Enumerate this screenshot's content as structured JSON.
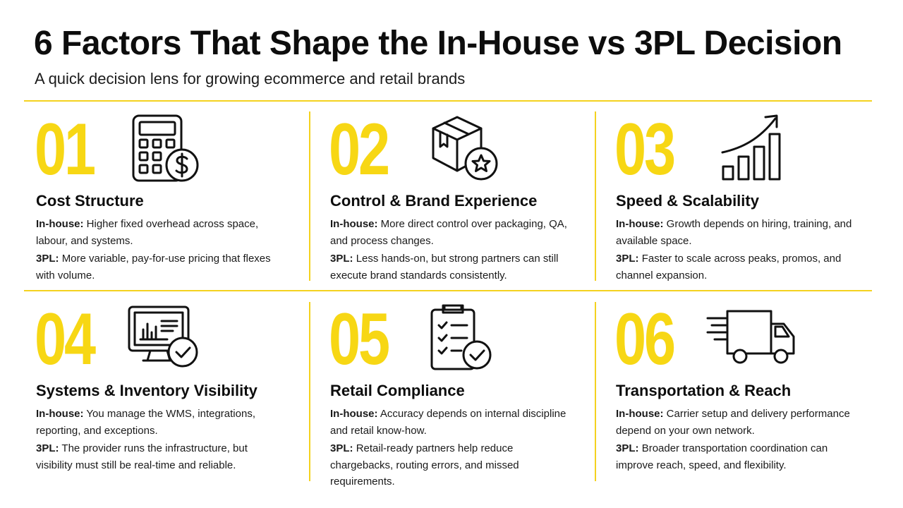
{
  "header": {
    "title": "6 Factors That Shape the In-House vs 3PL Decision",
    "subtitle": "A quick decision lens for growing ecommerce and retail brands"
  },
  "labels": {
    "inhouse": "In-house:",
    "tpl": "3PL:"
  },
  "colors": {
    "accent": "#f7d714",
    "text": "#111111",
    "divider": "#f4d21f"
  },
  "factors": [
    {
      "number": "01",
      "icon": "calculator-dollar-icon",
      "title": "Cost Structure",
      "inhouse": "Higher fixed overhead across space, labour, and systems.",
      "tpl": "More variable, pay-for-use pricing that flexes with volume."
    },
    {
      "number": "02",
      "icon": "box-star-icon",
      "title": "Control & Brand Experience",
      "inhouse": "More direct control over packaging, QA, and process changes.",
      "tpl": "Less hands-on, but strong partners can still execute brand standards consistently."
    },
    {
      "number": "03",
      "icon": "growth-chart-icon",
      "title": "Speed & Scalability",
      "inhouse": "Growth depends on hiring, training, and available space.",
      "tpl": "Faster to scale across peaks, promos, and channel expansion."
    },
    {
      "number": "04",
      "icon": "monitor-check-icon",
      "title": "Systems & Inventory Visibility",
      "inhouse": "You manage the WMS, integrations, reporting, and exceptions.",
      "tpl": "The provider runs the infrastructure, but visibility must still be real-time and reliable."
    },
    {
      "number": "05",
      "icon": "clipboard-check-icon",
      "title": "Retail Compliance",
      "inhouse": "Accuracy depends on internal discipline and retail know-how.",
      "tpl": "Retail-ready partners help reduce chargebacks, routing errors, and missed requirements."
    },
    {
      "number": "06",
      "icon": "delivery-truck-icon",
      "title": "Transportation & Reach",
      "inhouse": "Carrier setup and delivery performance depend on your own network.",
      "tpl": "Broader transportation coordination can improve reach, speed, and flexibility."
    }
  ]
}
